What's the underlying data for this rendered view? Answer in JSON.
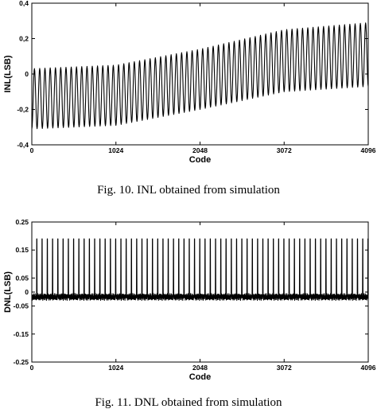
{
  "chart_data": [
    {
      "type": "line",
      "caption": "Fig. 10. INL obtained from simulation",
      "xlabel": "Code",
      "ylabel": "INL(LSB)",
      "xlim": [
        0,
        4096
      ],
      "ylim": [
        -0.4,
        0.4
      ],
      "xticks": [
        0,
        1024,
        2048,
        3072,
        4096
      ],
      "yticks": [
        -0.4,
        -0.2,
        0,
        0.2,
        0.4
      ],
      "xtick_labels": [
        "0",
        "1024",
        "2048",
        "3072",
        "4096"
      ],
      "ytick_labels": [
        "-0,4",
        "-0,2",
        "0",
        "0,2",
        "0,4"
      ],
      "grid": false,
      "series": [
        {
          "oscillation_period_codes": 64,
          "envelope_codes": [
            0,
            1024,
            2048,
            3072,
            4096
          ],
          "envelope_upper": [
            0.03,
            0.05,
            0.14,
            0.25,
            0.29
          ],
          "envelope_lower": [
            -0.31,
            -0.29,
            -0.2,
            -0.1,
            -0.07
          ]
        }
      ]
    },
    {
      "type": "line",
      "caption": "Fig. 11. DNL obtained from simulation",
      "xlabel": "Code",
      "ylabel": "DNL(LSB)",
      "xlim": [
        0,
        4096
      ],
      "ylim": [
        -0.25,
        0.25
      ],
      "xticks": [
        0,
        1024,
        2048,
        3072,
        4096
      ],
      "yticks": [
        -0.25,
        -0.15,
        -0.05,
        0,
        0.05,
        0.15,
        0.25
      ],
      "xtick_labels": [
        "0",
        "1024",
        "2048",
        "3072",
        "4096"
      ],
      "ytick_labels": [
        "-0.25",
        "-0.15",
        "-0.05",
        "0",
        "0.05",
        "0.15",
        "0.25"
      ],
      "grid": false,
      "series": [
        {
          "spike_period_codes": 64,
          "spike_peak": 0.19,
          "baseline_range": [
            -0.03,
            -0.005
          ]
        }
      ]
    }
  ]
}
